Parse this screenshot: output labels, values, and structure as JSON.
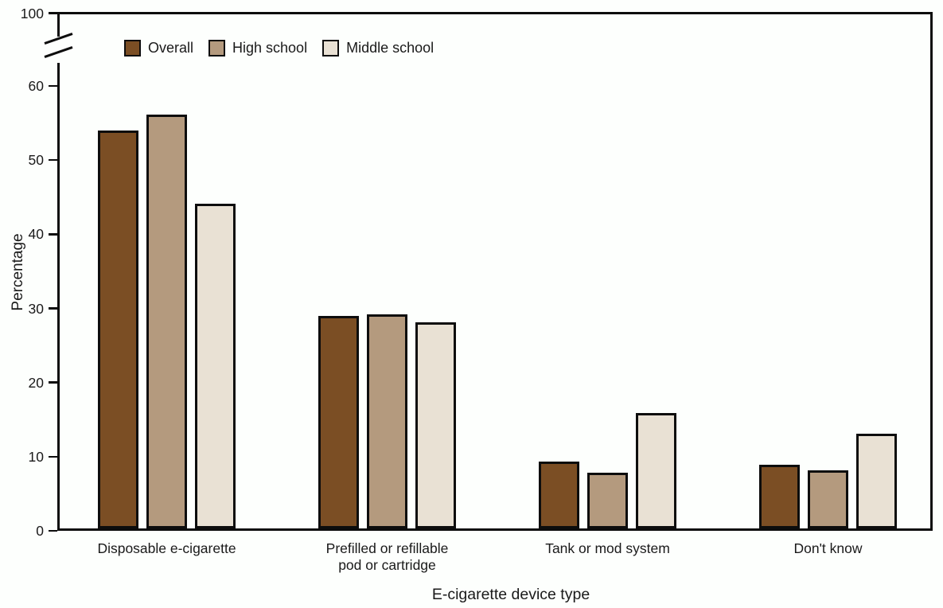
{
  "page": {
    "background": "#fdfffd",
    "axis_color": "#0d0d0d",
    "text_color": "#1a1a1a"
  },
  "chart_data": {
    "type": "bar",
    "title": "",
    "xlabel": "E-cigarette device type",
    "ylabel": "Percentage",
    "categories": [
      "Disposable e-cigarette",
      "Prefilled or refillable\npod or cartridge",
      "Tank or mod system",
      "Don't know"
    ],
    "series": [
      {
        "name": "Overall",
        "color": "#7b4e24",
        "values": [
          53.7,
          28.7,
          9.0,
          8.6
        ]
      },
      {
        "name": "High school",
        "color": "#b49a7e",
        "values": [
          55.8,
          28.9,
          7.5,
          7.8
        ]
      },
      {
        "name": "Middle school",
        "color": "#e9e1d4",
        "values": [
          43.8,
          27.8,
          15.6,
          12.8
        ]
      }
    ],
    "y_ticks": [
      0,
      10,
      20,
      30,
      40,
      50,
      60,
      100
    ],
    "ylim": [
      0,
      100
    ],
    "y_axis_break": {
      "between": [
        60,
        100
      ]
    },
    "grid": false,
    "legend_position": "top-left-inside"
  }
}
